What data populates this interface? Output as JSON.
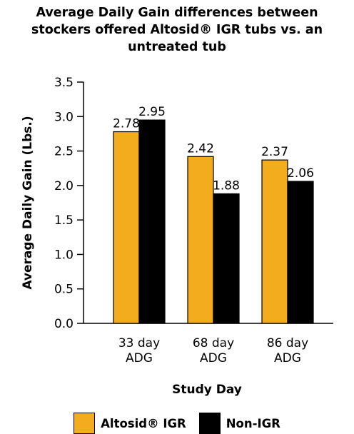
{
  "chart_data": {
    "type": "bar",
    "title_lines": [
      "Average Daily Gain differences between",
      "stockers offered Altosid® IGR tubs vs. an",
      "untreated tub"
    ],
    "categories": [
      [
        "33 day",
        "ADG"
      ],
      [
        "68 day",
        "ADG"
      ],
      [
        "86 day",
        "ADG"
      ]
    ],
    "series": [
      {
        "name": "Altosid® IGR",
        "color": "#f2ac1e",
        "values": [
          2.78,
          2.42,
          2.37
        ]
      },
      {
        "name": "Non-IGR",
        "color": "#000000",
        "values": [
          2.95,
          1.88,
          2.06
        ]
      }
    ],
    "value_labels": [
      [
        "2.78",
        "2.42",
        "2.37"
      ],
      [
        "2.95",
        "1.88",
        "2.06"
      ]
    ],
    "xlabel": "Study Day",
    "ylabel": "Average Daily Gain (Lbs.)",
    "ylim": [
      0,
      3.5
    ],
    "yticks": [
      "0.0",
      "0.5",
      "1.0",
      "1.5",
      "2.0",
      "2.5",
      "3.0",
      "3.5"
    ],
    "ytick_values": [
      0,
      0.5,
      1.0,
      1.5,
      2.0,
      2.5,
      3.0,
      3.5
    ],
    "grid": false,
    "legend_position": "bottom"
  }
}
